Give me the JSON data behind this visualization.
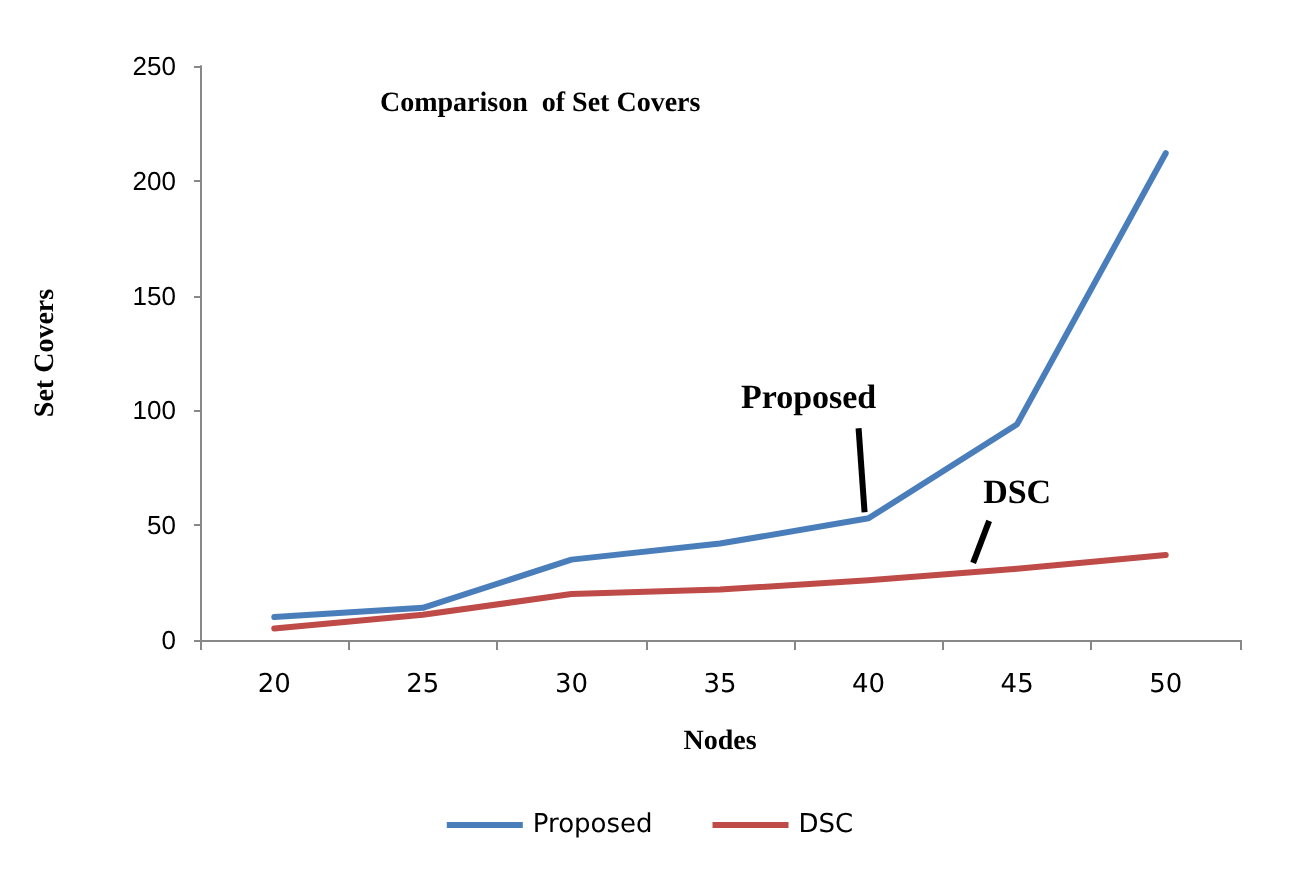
{
  "chart_data": {
    "type": "line",
    "title": "Comparison  of Set Covers",
    "xlabel": "Nodes",
    "ylabel": "Set Covers",
    "categories": [
      "20",
      "25",
      "30",
      "35",
      "40",
      "45",
      "50"
    ],
    "series": [
      {
        "name": "Proposed",
        "color": "#4a7ebb",
        "values": [
          10,
          14,
          35,
          42,
          53,
          94,
          212
        ]
      },
      {
        "name": "DSC",
        "color": "#be4b48",
        "values": [
          5,
          11,
          20,
          22,
          26,
          31,
          37
        ]
      }
    ],
    "ylim": [
      0,
      250
    ],
    "yticks": [
      0,
      50,
      100,
      150,
      200,
      250
    ],
    "grid": false,
    "legend": "bottom",
    "marker": "none",
    "line_style": "solid",
    "annotations": [
      {
        "text": "Proposed",
        "x": "40",
        "y": 53
      },
      {
        "text": "DSC",
        "x": "45",
        "y": 31
      }
    ]
  }
}
